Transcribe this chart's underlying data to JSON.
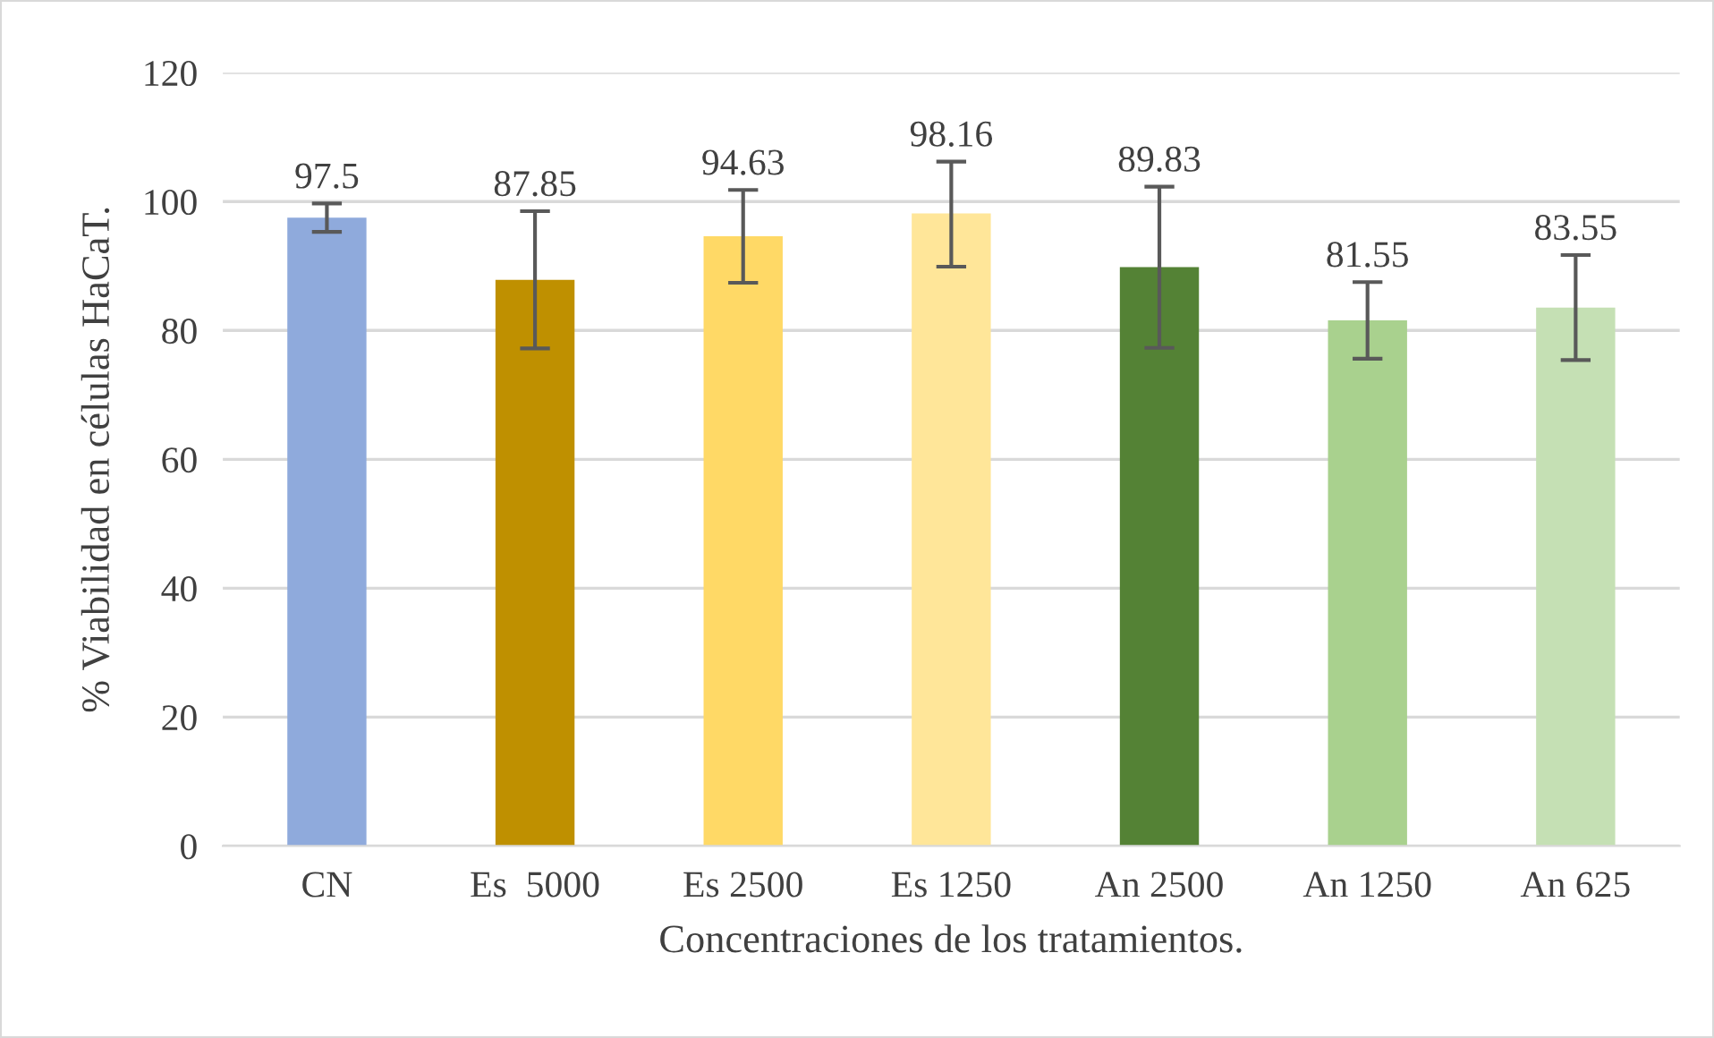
{
  "chart_data": {
    "type": "bar",
    "xlabel": "Concentraciones de los tratamientos.",
    "ylabel": "% Viabilidad en células HaCaT.",
    "categories": [
      "CN",
      "Es  5000",
      "Es 2500",
      "Es 1250",
      "An 2500",
      "An 1250",
      "An 625"
    ],
    "values": [
      97.5,
      87.85,
      94.63,
      98.16,
      89.83,
      81.55,
      83.55
    ],
    "colors": [
      "#8faadc",
      "#bf9000",
      "#ffd966",
      "#ffe699",
      "#548235",
      "#a9d18e",
      "#c5e0b4"
    ],
    "errors": [
      [
        95.3,
        99.7
      ],
      [
        77.2,
        98.5
      ],
      [
        87.4,
        101.8
      ],
      [
        89.9,
        106.2
      ],
      [
        77.3,
        102.3
      ],
      [
        75.6,
        87.5
      ],
      [
        75.4,
        91.7
      ]
    ],
    "data_labels": true,
    "ylim": [
      0,
      120
    ],
    "yticks": [
      0,
      20,
      40,
      60,
      80,
      100,
      120
    ],
    "grid": "y"
  }
}
